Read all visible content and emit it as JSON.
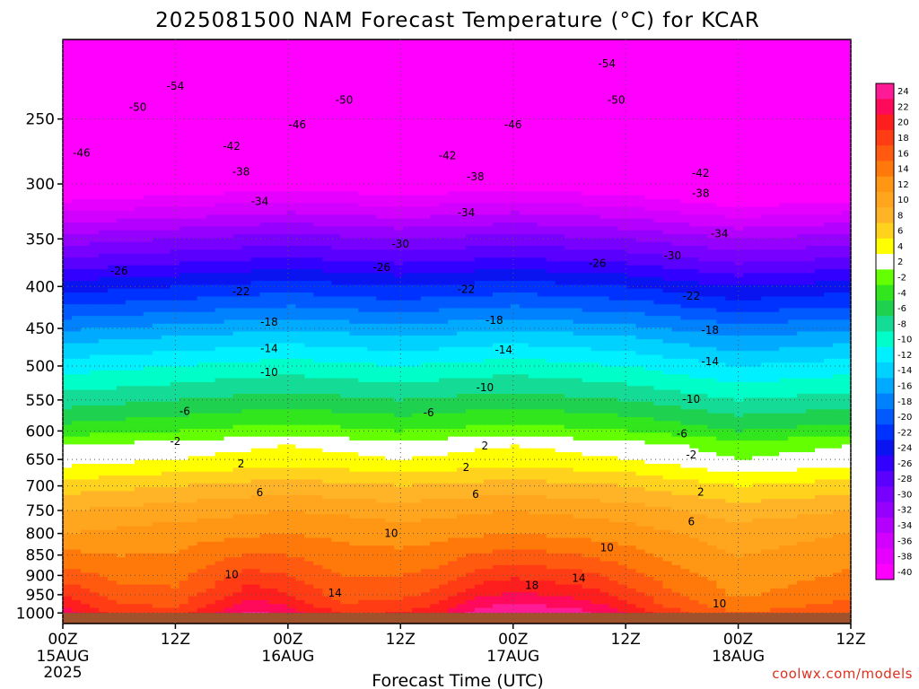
{
  "chart_data": {
    "type": "heatmap",
    "title": "2025081500 NAM Forecast Temperature (°C) for KCAR",
    "xlabel": "Forecast Time (UTC)",
    "credit": "coolwx.com/models",
    "x_ticks": [
      {
        "hour": 0,
        "label": "00Z",
        "sub": "15AUG",
        "sub2": "2025"
      },
      {
        "hour": 12,
        "label": "12Z",
        "sub": "",
        "sub2": ""
      },
      {
        "hour": 24,
        "label": "00Z",
        "sub": "16AUG",
        "sub2": ""
      },
      {
        "hour": 36,
        "label": "12Z",
        "sub": "",
        "sub2": ""
      },
      {
        "hour": 48,
        "label": "00Z",
        "sub": "17AUG",
        "sub2": ""
      },
      {
        "hour": 60,
        "label": "12Z",
        "sub": "",
        "sub2": ""
      },
      {
        "hour": 72,
        "label": "00Z",
        "sub": "18AUG",
        "sub2": ""
      },
      {
        "hour": 84,
        "label": "12Z",
        "sub": "",
        "sub2": ""
      }
    ],
    "xlim_hours": [
      0,
      84
    ],
    "y_ticks_hpa": [
      250,
      300,
      350,
      400,
      450,
      500,
      550,
      600,
      650,
      700,
      750,
      800,
      850,
      900,
      950,
      1000
    ],
    "ylim_hpa": [
      200,
      1030
    ],
    "y_scale": "log",
    "grid": true,
    "colorbar": {
      "labels": [
        "24",
        "22",
        "20",
        "18",
        "16",
        "14",
        "12",
        "10",
        "8",
        "6",
        "4",
        "2",
        "-2",
        "-4",
        "-6",
        "-8",
        "-10",
        "-12",
        "-14",
        "-16",
        "-18",
        "-20",
        "-22",
        "-24",
        "-26",
        "-28",
        "-30",
        "-32",
        "-34",
        "-36",
        "-38",
        "-40"
      ],
      "colors": [
        "#ff1a96",
        "#ff0a5a",
        "#ff1e1e",
        "#ff3c14",
        "#ff5a0f",
        "#ff780a",
        "#ff9614",
        "#ffa51e",
        "#ffb428",
        "#ffd21e",
        "#ffff00",
        "#ffffff",
        "#64ff00",
        "#32e61e",
        "#1ed250",
        "#14dc96",
        "#00ffc8",
        "#00f0ff",
        "#00d2ff",
        "#00aaff",
        "#0082ff",
        "#005aff",
        "#0032ff",
        "#0a14f0",
        "#3200ff",
        "#5a00ff",
        "#7800ff",
        "#9600ff",
        "#b400ff",
        "#d200ff",
        "#e600ff",
        "#ff00ff"
      ]
    },
    "temperature_profile": [
      {
        "hpa": 200,
        "t": -57
      },
      {
        "hpa": 230,
        "t": -54
      },
      {
        "hpa": 250,
        "t": -49
      },
      {
        "hpa": 270,
        "t": -44
      },
      {
        "hpa": 300,
        "t": -40
      },
      {
        "hpa": 325,
        "t": -35
      },
      {
        "hpa": 350,
        "t": -30
      },
      {
        "hpa": 375,
        "t": -26
      },
      {
        "hpa": 400,
        "t": -22
      },
      {
        "hpa": 430,
        "t": -18
      },
      {
        "hpa": 460,
        "t": -14
      },
      {
        "hpa": 500,
        "t": -10
      },
      {
        "hpa": 550,
        "t": -6
      },
      {
        "hpa": 600,
        "t": -2
      },
      {
        "hpa": 625,
        "t": 1
      },
      {
        "hpa": 650,
        "t": 2
      },
      {
        "hpa": 700,
        "t": 6
      },
      {
        "hpa": 750,
        "t": 9
      },
      {
        "hpa": 800,
        "t": 11
      },
      {
        "hpa": 850,
        "t": 13
      },
      {
        "hpa": 900,
        "t": 15
      },
      {
        "hpa": 950,
        "t": 17
      },
      {
        "hpa": 1000,
        "t": 20
      }
    ],
    "time_shifts": [
      {
        "hour": 0,
        "dt": -1
      },
      {
        "hour": 12,
        "dt": 0
      },
      {
        "hour": 24,
        "dt": 1
      },
      {
        "hour": 36,
        "dt": 0
      },
      {
        "hour": 48,
        "dt": 1
      },
      {
        "hour": 60,
        "dt": 0
      },
      {
        "hour": 72,
        "dt": -2
      },
      {
        "hour": 84,
        "dt": -1
      }
    ],
    "surface_warming": [
      {
        "hour": 0,
        "dt": 2
      },
      {
        "hour": 6,
        "dt": -2
      },
      {
        "hour": 12,
        "dt": -3
      },
      {
        "hour": 20,
        "dt": 2
      },
      {
        "hour": 30,
        "dt": -3
      },
      {
        "hour": 40,
        "dt": -1
      },
      {
        "hour": 44,
        "dt": 2
      },
      {
        "hour": 48,
        "dt": 3
      },
      {
        "hour": 56,
        "dt": 2
      },
      {
        "hour": 64,
        "dt": -2
      },
      {
        "hour": 72,
        "dt": -4
      },
      {
        "hour": 84,
        "dt": -3
      }
    ],
    "contour_labels": [
      {
        "hour": 12,
        "hpa": 228,
        "text": "-54"
      },
      {
        "hour": 58,
        "hpa": 214,
        "text": "-54"
      },
      {
        "hour": 8,
        "hpa": 242,
        "text": "-50"
      },
      {
        "hour": 30,
        "hpa": 237,
        "text": "-50"
      },
      {
        "hour": 59,
        "hpa": 237,
        "text": "-50"
      },
      {
        "hour": 2,
        "hpa": 275,
        "text": "-46"
      },
      {
        "hour": 25,
        "hpa": 254,
        "text": "-46"
      },
      {
        "hour": 48,
        "hpa": 254,
        "text": "-46"
      },
      {
        "hour": 18,
        "hpa": 270,
        "text": "-42"
      },
      {
        "hour": 41,
        "hpa": 277,
        "text": "-42"
      },
      {
        "hour": 68,
        "hpa": 291,
        "text": "-42"
      },
      {
        "hour": 19,
        "hpa": 290,
        "text": "-38"
      },
      {
        "hour": 44,
        "hpa": 294,
        "text": "-38"
      },
      {
        "hour": 68,
        "hpa": 308,
        "text": "-38"
      },
      {
        "hour": 21,
        "hpa": 315,
        "text": "-34"
      },
      {
        "hour": 43,
        "hpa": 325,
        "text": "-34"
      },
      {
        "hour": 70,
        "hpa": 345,
        "text": "-34"
      },
      {
        "hour": 36,
        "hpa": 355,
        "text": "-30"
      },
      {
        "hour": 65,
        "hpa": 367,
        "text": "-30"
      },
      {
        "hour": 6,
        "hpa": 383,
        "text": "-26"
      },
      {
        "hour": 34,
        "hpa": 379,
        "text": "-26"
      },
      {
        "hour": 57,
        "hpa": 375,
        "text": "-26"
      },
      {
        "hour": 19,
        "hpa": 406,
        "text": "-22"
      },
      {
        "hour": 43,
        "hpa": 403,
        "text": "-22"
      },
      {
        "hour": 67,
        "hpa": 411,
        "text": "-22"
      },
      {
        "hour": 22,
        "hpa": 442,
        "text": "-18"
      },
      {
        "hour": 46,
        "hpa": 440,
        "text": "-18"
      },
      {
        "hour": 69,
        "hpa": 452,
        "text": "-18"
      },
      {
        "hour": 22,
        "hpa": 476,
        "text": "-14"
      },
      {
        "hour": 47,
        "hpa": 478,
        "text": "-14"
      },
      {
        "hour": 69,
        "hpa": 494,
        "text": "-14"
      },
      {
        "hour": 22,
        "hpa": 509,
        "text": "-10"
      },
      {
        "hour": 45,
        "hpa": 531,
        "text": "-10"
      },
      {
        "hour": 67,
        "hpa": 549,
        "text": "-10"
      },
      {
        "hour": 13,
        "hpa": 568,
        "text": "-6"
      },
      {
        "hour": 39,
        "hpa": 570,
        "text": "-6"
      },
      {
        "hour": 66,
        "hpa": 605,
        "text": "-6"
      },
      {
        "hour": 12,
        "hpa": 618,
        "text": "-2"
      },
      {
        "hour": 45,
        "hpa": 626,
        "text": "2"
      },
      {
        "hour": 67,
        "hpa": 642,
        "text": "-2"
      },
      {
        "hour": 19,
        "hpa": 658,
        "text": "2"
      },
      {
        "hour": 43,
        "hpa": 665,
        "text": "2"
      },
      {
        "hour": 68,
        "hpa": 712,
        "text": "2"
      },
      {
        "hour": 21,
        "hpa": 713,
        "text": "6"
      },
      {
        "hour": 44,
        "hpa": 717,
        "text": "6"
      },
      {
        "hour": 67,
        "hpa": 774,
        "text": "6"
      },
      {
        "hour": 35,
        "hpa": 800,
        "text": "10"
      },
      {
        "hour": 58,
        "hpa": 833,
        "text": "10"
      },
      {
        "hour": 18,
        "hpa": 898,
        "text": "10"
      },
      {
        "hour": 70,
        "hpa": 975,
        "text": "10"
      },
      {
        "hour": 29,
        "hpa": 946,
        "text": "14"
      },
      {
        "hour": 55,
        "hpa": 907,
        "text": "14"
      },
      {
        "hour": 50,
        "hpa": 926,
        "text": "18"
      }
    ]
  }
}
